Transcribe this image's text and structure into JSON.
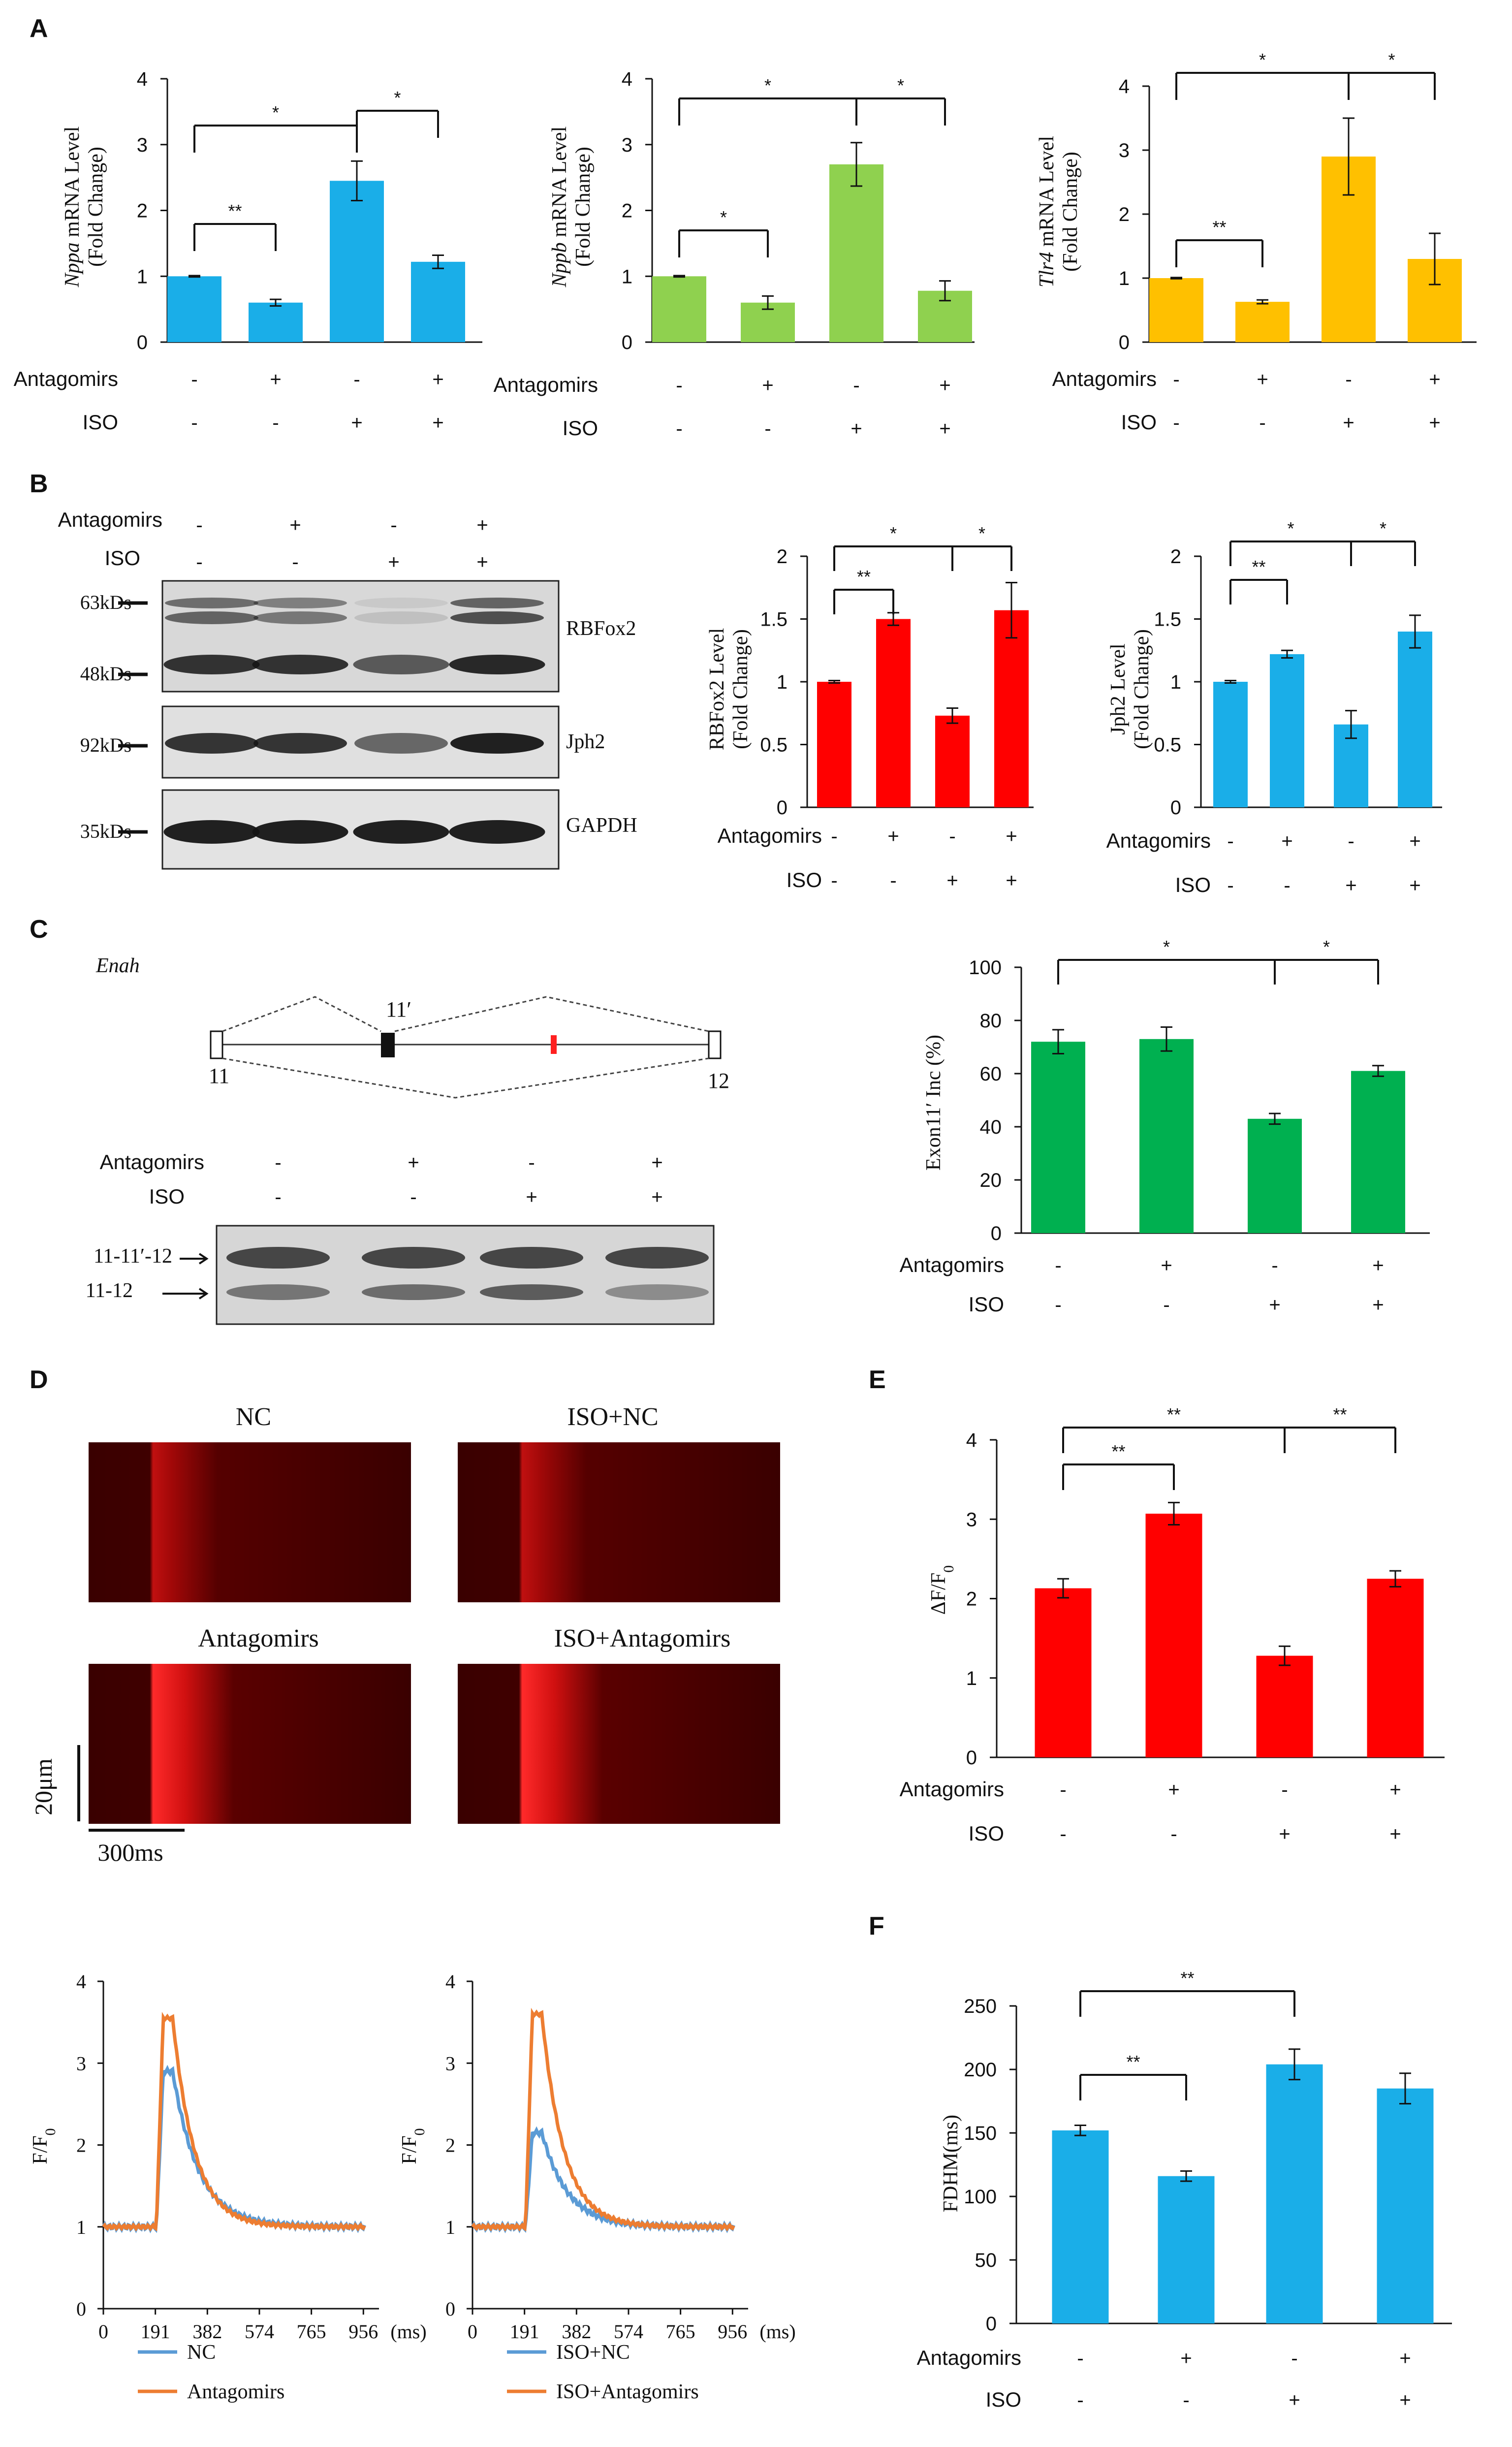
{
  "colors": {
    "blue": "#1AAEE8",
    "green": "#8FD14F",
    "orange": "#FFC000",
    "red": "#FF0000",
    "green2": "#00B050",
    "trace_blue": "#5B9BD5",
    "trace_orange": "#ED7D31"
  },
  "panel_letters": [
    "A",
    "B",
    "C",
    "D",
    "E",
    "F"
  ],
  "cond_labels": {
    "antagomirs": "Antagomirs",
    "iso": "ISO"
  },
  "signs": {
    "antagomirs": [
      "-",
      "+",
      "-",
      "+"
    ],
    "iso": [
      "-",
      "-",
      "+",
      "+"
    ]
  },
  "panelA": [
    {
      "ylabel_gene": "Nppa",
      "ylabel_rest": " mRNA Level",
      "ylabel2": "(Fold Change)",
      "ylim": [
        0,
        4
      ],
      "ticks": [
        "0",
        "1",
        "2",
        "3",
        "4"
      ],
      "values": [
        1.0,
        0.6,
        2.45,
        1.22
      ],
      "errors": [
        0.01,
        0.05,
        0.3,
        0.1
      ],
      "color": "blue",
      "sig": [
        {
          "from": 0,
          "to": 1,
          "label": "**"
        },
        {
          "from": 0,
          "to": 2,
          "label": "*"
        },
        {
          "from": 2,
          "to": 3,
          "label": "*"
        }
      ]
    },
    {
      "ylabel_gene": "Nppb",
      "ylabel_rest": " mRNA Level",
      "ylabel2": "(Fold Change)",
      "ylim": [
        0,
        4
      ],
      "ticks": [
        "0",
        "1",
        "2",
        "3",
        "4"
      ],
      "values": [
        1.0,
        0.6,
        2.7,
        0.78
      ],
      "errors": [
        0.01,
        0.1,
        0.33,
        0.15
      ],
      "color": "green",
      "sig": [
        {
          "from": 0,
          "to": 1,
          "label": "*"
        },
        {
          "from": 0,
          "to": 2,
          "label": "*"
        },
        {
          "from": 2,
          "to": 3,
          "label": "*"
        }
      ]
    },
    {
      "ylabel_gene": "Tlr4",
      "ylabel_rest": " mRNA Level",
      "ylabel2": "(Fold Change)",
      "ylim": [
        0,
        4
      ],
      "ticks": [
        "0",
        "1",
        "2",
        "3",
        "4"
      ],
      "values": [
        1.0,
        0.63,
        2.9,
        1.3
      ],
      "errors": [
        0.01,
        0.03,
        0.6,
        0.4
      ],
      "color": "orange",
      "sig": [
        {
          "from": 0,
          "to": 1,
          "label": "**"
        },
        {
          "from": 0,
          "to": 2,
          "label": "*"
        },
        {
          "from": 2,
          "to": 3,
          "label": "*"
        }
      ]
    }
  ],
  "panelB": {
    "blot_labels": {
      "rbfox2": "RBFox2",
      "jph2": "Jph2",
      "gapdh": "GAPDH",
      "kd63": "63kDs",
      "kd48": "48kDs",
      "kd92": "92kDs",
      "kd35": "35kDs"
    },
    "charts": [
      {
        "ylabel": "RBFox2 Level",
        "ylabel2": "(Fold Change)",
        "ylim": [
          0,
          2
        ],
        "ticks": [
          "0",
          "0.5",
          "1",
          "1.5",
          "2"
        ],
        "values": [
          1.0,
          1.5,
          0.73,
          1.57
        ],
        "errors": [
          0.01,
          0.05,
          0.06,
          0.22
        ],
        "color": "red",
        "sig": [
          {
            "from": 0,
            "to": 1,
            "label": "**"
          },
          {
            "from": 0,
            "to": 2,
            "label": "*"
          },
          {
            "from": 2,
            "to": 3,
            "label": "*"
          }
        ]
      },
      {
        "ylabel": "Jph2 Level",
        "ylabel2": "(Fold Change)",
        "ylim": [
          0,
          2
        ],
        "ticks": [
          "0",
          "0.5",
          "1",
          "1.5",
          "2"
        ],
        "values": [
          1.0,
          1.22,
          0.66,
          1.4
        ],
        "errors": [
          0.01,
          0.03,
          0.11,
          0.13
        ],
        "color": "blue",
        "sig": [
          {
            "from": 0,
            "to": 1,
            "label": "**"
          },
          {
            "from": 0,
            "to": 2,
            "label": "*"
          },
          {
            "from": 2,
            "to": 3,
            "label": "*"
          }
        ]
      }
    ]
  },
  "panelC": {
    "gene": "Enah",
    "exon11p": "11′",
    "exon11": "11",
    "exon12": "12",
    "band1": "11-11′-12",
    "band2": "11-12",
    "chart": {
      "ylabel": "Exon11′ Inc (%)",
      "ylim": [
        0,
        100
      ],
      "ticks": [
        "0",
        "20",
        "40",
        "60",
        "80",
        "100"
      ],
      "values": [
        72,
        73,
        43,
        61
      ],
      "errors": [
        4.5,
        4.5,
        2,
        2
      ],
      "color": "green2",
      "sig": [
        {
          "from": 0,
          "to": 2,
          "label": "*"
        },
        {
          "from": 2,
          "to": 3,
          "label": "*"
        }
      ]
    }
  },
  "panelD": {
    "image_titles": [
      "NC",
      "ISO+NC",
      "Antagomirs",
      "ISO+Antagomirs"
    ],
    "scale_v": "20μm",
    "scale_h": "300ms",
    "traces": {
      "ylabel": "F/F",
      "ylabel_sub": "0",
      "yticks": [
        "0",
        "1",
        "2",
        "3",
        "4"
      ],
      "xticks": [
        "0",
        "191",
        "382",
        "574",
        "765",
        "956"
      ],
      "xunit": "(ms)",
      "left_legend": [
        "NC",
        "Antagomirs"
      ],
      "right_legend": [
        "ISO+NC",
        "ISO+Antagomirs"
      ],
      "left_peaks": [
        2.9,
        3.55
      ],
      "right_peaks": [
        2.15,
        3.6
      ]
    }
  },
  "panelE": {
    "ylabel": "ΔF/F",
    "ylabel_sub": "0",
    "ylim": [
      0,
      4
    ],
    "ticks": [
      "0",
      "1",
      "2",
      "3",
      "4"
    ],
    "values": [
      2.13,
      3.07,
      1.28,
      2.25
    ],
    "errors": [
      0.12,
      0.14,
      0.12,
      0.1
    ],
    "color": "red",
    "sig": [
      {
        "from": 0,
        "to": 1,
        "label": "**"
      },
      {
        "from": 0,
        "to": 2,
        "label": "**"
      },
      {
        "from": 2,
        "to": 3,
        "label": "**"
      }
    ]
  },
  "panelF": {
    "ylabel": "FDHM(ms)",
    "ylim": [
      0,
      250
    ],
    "ticks": [
      "0",
      "50",
      "100",
      "150",
      "200",
      "250"
    ],
    "values": [
      152,
      116,
      204,
      185
    ],
    "errors": [
      4,
      4,
      12,
      12
    ],
    "color": "blue",
    "sig": [
      {
        "from": 0,
        "to": 1,
        "label": "**"
      },
      {
        "from": 0,
        "to": 2,
        "label": "**"
      }
    ]
  }
}
